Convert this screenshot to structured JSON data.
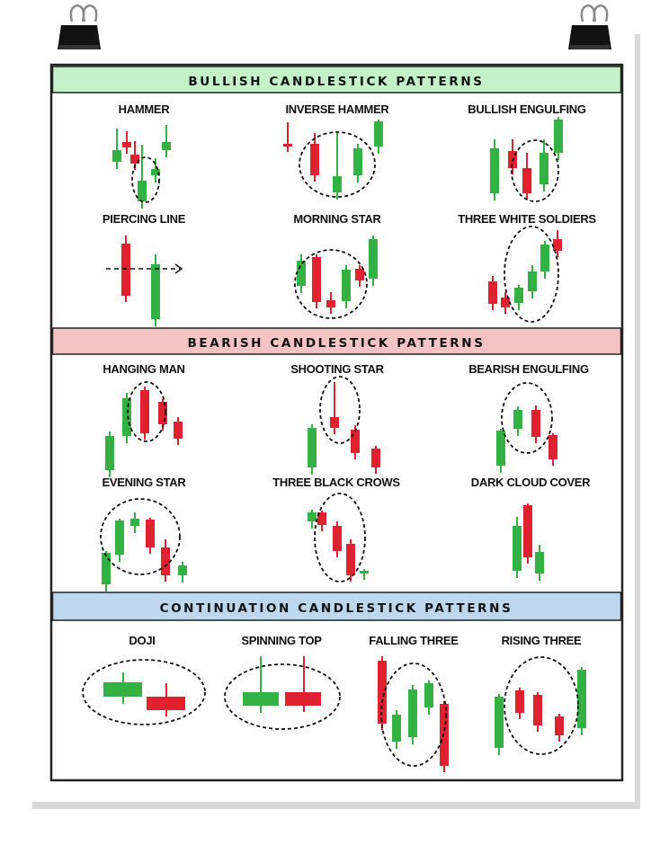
{
  "colors": {
    "bull": "#33b142",
    "bear": "#e0212f",
    "bullish_bar": "#c4f2c8",
    "bearish_bar": "#f5c3c3",
    "continuation_bar": "#bcd7ee"
  },
  "sections": [
    {
      "id": "bullish",
      "title": "BULLISH CANDLESTICK PATTERNS",
      "patterns": [
        {
          "name": "HAMMER",
          "candles": [
            [
              "g",
              130,
              143,
              167,
              180
            ],
            [
              "r",
              141,
              146,
              158,
              164
            ],
            [
              "r",
              150,
              157,
              172,
              182
            ],
            [
              "g",
              158,
              161,
              201,
              224
            ],
            [
              "g",
              173,
              176,
              188,
              195
            ],
            [
              "g",
              185,
              139,
              158,
              167
            ]
          ],
          "ellipse": [
            162,
            200,
            15,
            25
          ]
        },
        {
          "name": "INVERSE HAMMER",
          "candles": [
            [
              "r",
              320,
              136,
              160,
              162
            ],
            [
              "r",
              350,
              148,
              160,
              195
            ],
            [
              "g",
              375,
              148,
              196,
              214
            ],
            [
              "g",
              398,
              160,
              165,
              195
            ],
            [
              "g",
              421,
              133,
              135,
              163
            ]
          ],
          "ellipse": [
            375,
            183,
            42,
            36
          ]
        },
        {
          "name": "BULLISH ENGULFING",
          "candles": [
            [
              "g",
              550,
              155,
              165,
              215
            ],
            [
              "r",
              570,
              155,
              168,
              187
            ],
            [
              "r",
              586,
              170,
              187,
              215
            ],
            [
              "g",
              605,
              155,
              170,
              205
            ],
            [
              "g",
              621,
              130,
              133,
              170
            ]
          ],
          "ellipse": [
            595,
            190,
            26,
            34
          ]
        },
        {
          "name": "PIERCING LINE",
          "candles": [
            [
              "r",
              140,
              262,
              271,
              329
            ],
            [
              "g",
              173,
              283,
              294,
              355
            ]
          ],
          "arrow": [
            118,
            299,
            202
          ]
        },
        {
          "name": "MORNING STAR",
          "candles": [
            [
              "g",
              335,
              283,
              290,
              318
            ],
            [
              "r",
              352,
              283,
              286,
              336
            ],
            [
              "r",
              368,
              325,
              334,
              342
            ],
            [
              "g",
              385,
              295,
              300,
              335
            ],
            [
              "r",
              400,
              295,
              299,
              312
            ],
            [
              "g",
              415,
              262,
              266,
              310
            ]
          ],
          "ellipse": [
            368,
            316,
            40,
            38
          ]
        },
        {
          "name": "THREE WHITE SOLDIERS",
          "candles": [
            [
              "r",
              548,
              307,
              313,
              338
            ],
            [
              "r",
              562,
              325,
              331,
              342
            ],
            [
              "g",
              577,
              317,
              320,
              337
            ],
            [
              "g",
              592,
              295,
              302,
              324
            ],
            [
              "g",
              606,
              268,
              272,
              302
            ],
            [
              "r",
              620,
              256,
              266,
              279
            ]
          ],
          "ellipse": [
            591,
            305,
            30,
            53
          ]
        }
      ]
    },
    {
      "id": "bearish",
      "title": "BEARISH CANDLESTICK PATTERNS",
      "patterns": [
        {
          "name": "HANGING MAN",
          "candles": [
            [
              "g",
              122,
              480,
              485,
              523
            ],
            [
              "g",
              141,
              437,
              443,
              485
            ],
            [
              "r",
              161,
              430,
              434,
              482
            ],
            [
              "r",
              181,
              444,
              447,
              472
            ],
            [
              "r",
              198,
              464,
              469,
              488
            ]
          ],
          "ellipse": [
            163,
            458,
            21,
            33
          ]
        },
        {
          "name": "SHOOTING STAR",
          "candles": [
            [
              "g",
              347,
              472,
              476,
              520
            ],
            [
              "r",
              372,
              425,
              464,
              476
            ],
            [
              "r",
              395,
              473,
              478,
              504
            ],
            [
              "r",
              418,
              496,
              499,
              520
            ]
          ],
          "ellipse": [
            378,
            456,
            22,
            37
          ]
        },
        {
          "name": "BEARISH ENGULFING",
          "candles": [
            [
              "g",
              557,
              477,
              479,
              518
            ],
            [
              "g",
              576,
              452,
              456,
              477
            ],
            [
              "r",
              596,
              451,
              456,
              486
            ],
            [
              "r",
              615,
              482,
              484,
              511
            ]
          ],
          "ellipse": [
            586,
            465,
            28,
            39
          ]
        },
        {
          "name": "EVENING STAR",
          "candles": [
            [
              "g",
              118,
              613,
              615,
              650
            ],
            [
              "g",
              133,
              577,
              579,
              617
            ],
            [
              "g",
              150,
              570,
              577,
              585
            ],
            [
              "r",
              167,
              576,
              578,
              609
            ],
            [
              "r",
              184,
              600,
              609,
              640
            ],
            [
              "g",
              203,
              625,
              629,
              640
            ]
          ],
          "ellipse": [
            156,
            597,
            44,
            42
          ]
        },
        {
          "name": "THREE BLACK CROWS",
          "candles": [
            [
              "g",
              347,
              567,
              570,
              580
            ],
            [
              "r",
              358,
              568,
              570,
              584
            ],
            [
              "r",
              375,
              580,
              585,
              613
            ],
            [
              "r",
              390,
              600,
              605,
              640
            ],
            [
              "g",
              405,
              633,
              635,
              637
            ]
          ],
          "ellipse": [
            378,
            598,
            28,
            49
          ]
        },
        {
          "name": "DARK CLOUD COVER",
          "candles": [
            [
              "g",
              575,
              575,
              585,
              635
            ],
            [
              "r",
              587,
              560,
              562,
              620
            ],
            [
              "g",
              600,
              606,
              614,
              638
            ]
          ]
        }
      ]
    },
    {
      "id": "continuation",
      "title": "CONTINUATION CANDLESTICK PATTERNS",
      "patterns": [
        {
          "name": "DOJI",
          "candles": [
            [
              "g",
              137,
              748,
              759,
              775,
              115,
              158
            ],
            [
              "r",
              185,
              760,
              775,
              790,
              163,
              206
            ]
          ],
          "ellipse": [
            160,
            770,
            68,
            36
          ]
        },
        {
          "name": "SPINNING TOP",
          "candles": [
            [
              "g",
              290,
              730,
              770,
              785,
              270,
              310
            ],
            [
              "r",
              338,
              730,
              770,
              785,
              317,
              357
            ]
          ],
          "ellipse": [
            314,
            775,
            64,
            36
          ]
        },
        {
          "name": "FALLING THREE",
          "candles": [
            [
              "r",
              425,
              730,
              735,
              805
            ],
            [
              "g",
              441,
              790,
              795,
              825
            ],
            [
              "g",
              459,
              762,
              767,
              820
            ],
            [
              "g",
              477,
              757,
              760,
              787
            ],
            [
              "r",
              494,
              780,
              783,
              852
            ]
          ],
          "ellipse": [
            460,
            795,
            36,
            57
          ]
        },
        {
          "name": "RISING THREE",
          "candles": [
            [
              "g",
              555,
              772,
              775,
              832
            ],
            [
              "r",
              578,
              765,
              768,
              793
            ],
            [
              "r",
              598,
              770,
              773,
              807
            ],
            [
              "r",
              622,
              794,
              797,
              818
            ],
            [
              "g",
              647,
              742,
              745,
              810
            ]
          ],
          "ellipse": [
            602,
            785,
            41,
            54
          ]
        }
      ]
    }
  ]
}
